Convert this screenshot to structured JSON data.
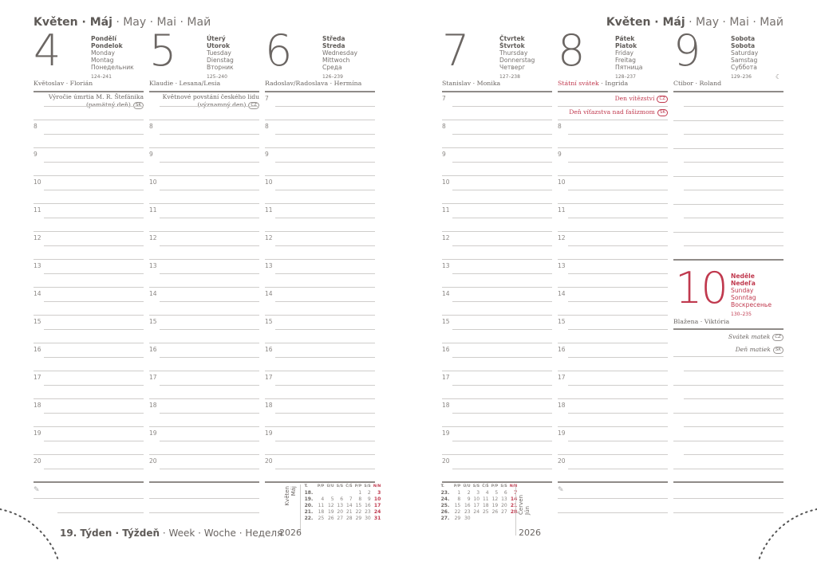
{
  "month_header": {
    "bold": "Květen · Máj",
    "rest": " · May · Mai · Май"
  },
  "week_label": {
    "bold": "19. Týden · Týždeň",
    "rest": " · Week · Woche · Неделя"
  },
  "year": "2026",
  "colors": {
    "text": "#6b6663",
    "holiday_red": "#c0394e"
  },
  "days": [
    {
      "num": "4",
      "cz": "Pondělí",
      "sk": "Pondelok",
      "en": "Monday",
      "de": "Montag",
      "ru": "Понедельник",
      "count": "124–241",
      "nameday": "Květoslav · Florián",
      "events": [
        {
          "text": "Výročie úmrtia M. R. Štefánika",
          "text2": "(pamätný deň)",
          "badge": "SK"
        }
      ],
      "hours": [
        "8",
        "9",
        "10",
        "11",
        "12",
        "13",
        "14",
        "15",
        "16",
        "17",
        "18",
        "19",
        "20"
      ]
    },
    {
      "num": "5",
      "cz": "Úterý",
      "sk": "Utorok",
      "en": "Tuesday",
      "de": "Dienstag",
      "ru": "Вторник",
      "count": "125–240",
      "nameday": "Klaudie · Lesana/Lesia",
      "events": [
        {
          "text": "Květnové povstání českého lidu",
          "text2": "(významný den)",
          "badge": "CZ"
        }
      ],
      "hours": [
        "8",
        "9",
        "10",
        "11",
        "12",
        "13",
        "14",
        "15",
        "16",
        "17",
        "18",
        "19",
        "20"
      ]
    },
    {
      "num": "6",
      "cz": "Středa",
      "sk": "Streda",
      "en": "Wednesday",
      "de": "Mittwoch",
      "ru": "Среда",
      "count": "126–239",
      "nameday": "Radoslav/Radoslava · Hermína",
      "events": [],
      "hours": [
        "7",
        "8",
        "9",
        "10",
        "11",
        "12",
        "13",
        "14",
        "15",
        "16",
        "17",
        "18",
        "19",
        "20"
      ]
    },
    {
      "num": "7",
      "cz": "Čtvrtek",
      "sk": "Štvrtok",
      "en": "Thursday",
      "de": "Donnerstag",
      "ru": "Четверг",
      "count": "127–238",
      "nameday": "Stanislav · Monika",
      "events": [],
      "hours": [
        "7",
        "8",
        "9",
        "10",
        "11",
        "12",
        "13",
        "14",
        "15",
        "16",
        "17",
        "18",
        "19",
        "20"
      ]
    },
    {
      "num": "8",
      "cz": "Pátek",
      "sk": "Piatok",
      "en": "Friday",
      "de": "Freitag",
      "ru": "Пятница",
      "count": "128–237",
      "nameday_red": "Státní svátek",
      "nameday": " · Ingrida",
      "events": [
        {
          "text": "Den vítězství",
          "badge": "CZ",
          "red": true
        },
        {
          "text": "Deň víťazstva nad fašizmom",
          "badge": "SK",
          "red": true
        }
      ],
      "hours": [
        "8",
        "9",
        "10",
        "11",
        "12",
        "13",
        "14",
        "15",
        "16",
        "17",
        "18",
        "19",
        "20"
      ]
    },
    {
      "num": "9",
      "cz": "Sobota",
      "sk": "Sobota",
      "en": "Saturday",
      "de": "Samstag",
      "ru": "Суббота",
      "count": "129–236",
      "moon": "☾",
      "nameday": "Ctibor · Roland",
      "events": [],
      "hours": []
    }
  ],
  "sunday": {
    "num": "10",
    "cz": "Neděle",
    "sk": "Nedeľa",
    "en": "Sunday",
    "de": "Sonntag",
    "ru": "Воскресенье",
    "count": "130–235",
    "nameday": "Blažena · Viktória",
    "events": [
      {
        "text": "Svátek matek",
        "badge": "CZ"
      },
      {
        "text": "Deň matiek",
        "badge": "SK"
      }
    ]
  },
  "mini_header": [
    "T.",
    "P/P",
    "Ú/U",
    "S/S",
    "Č/Š",
    "P/P",
    "S/S",
    "N/N"
  ],
  "mini_may": {
    "label1": "Květen",
    "label2": "Máj",
    "rows": [
      [
        "18.",
        "",
        "",
        "",
        "",
        "1",
        "2",
        "3"
      ],
      [
        "19.",
        "4",
        "5",
        "6",
        "7",
        "8",
        "9",
        "10"
      ],
      [
        "20.",
        "11",
        "12",
        "13",
        "14",
        "15",
        "16",
        "17"
      ],
      [
        "21.",
        "18",
        "19",
        "20",
        "21",
        "22",
        "23",
        "24"
      ],
      [
        "22.",
        "25",
        "26",
        "27",
        "28",
        "29",
        "30",
        "31"
      ]
    ]
  },
  "mini_june": {
    "label1": "Červen",
    "label2": "Jún",
    "rows": [
      [
        "23.",
        "1",
        "2",
        "3",
        "4",
        "5",
        "6",
        "7"
      ],
      [
        "24.",
        "8",
        "9",
        "10",
        "11",
        "12",
        "13",
        "14"
      ],
      [
        "25.",
        "15",
        "16",
        "17",
        "18",
        "19",
        "20",
        "21"
      ],
      [
        "26.",
        "22",
        "23",
        "24",
        "25",
        "26",
        "27",
        "28"
      ],
      [
        "27.",
        "29",
        "30",
        "",
        "",
        "",
        "",
        ""
      ]
    ]
  }
}
